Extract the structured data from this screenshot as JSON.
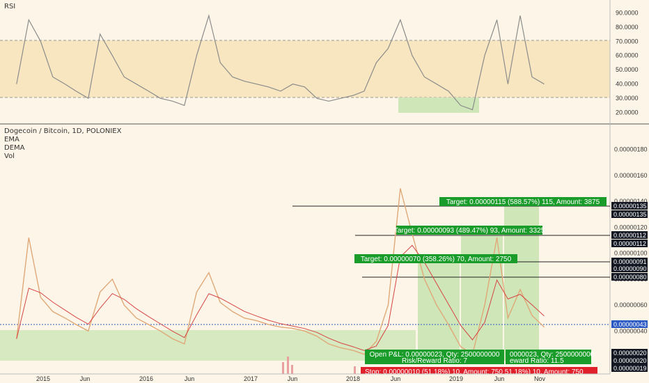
{
  "colors": {
    "background": "#fdf6e8",
    "rsi_band": "#f7e6bf",
    "rsi_line": "#8c8c8c",
    "price_candles": "#e0a878",
    "ema": "#d64545",
    "dema": "#3a7bd5",
    "green_zone": "#cfe6b8",
    "target_label": "#1a9c2a",
    "stop_label": "#e0202a",
    "current_price_label": "#2b59c3",
    "level_label": "#131722"
  },
  "rsi_panel": {
    "title": "RSI",
    "ticks": [
      "90.0000",
      "80.0000",
      "70.0000",
      "60.0000",
      "50.0000",
      "40.0000",
      "30.0000",
      "20.0000"
    ],
    "overbought": 70,
    "oversold": 30
  },
  "price_panel": {
    "title": "Dogecoin / Bitcoin, 1D, POLONIEX",
    "indicators": [
      "EMA",
      "DEMA",
      "Vol"
    ],
    "ticks": [
      "0.00000180",
      "0.00000160",
      "0.00000140",
      "0.00000120",
      "0.00000100",
      "0.00000080",
      "0.00000060",
      "0.00000040",
      "0.00000020"
    ],
    "price_labels": [
      {
        "text": "0.00000135",
        "kind": "level"
      },
      {
        "text": "0.00000135",
        "kind": "level"
      },
      {
        "text": "0.00000112",
        "kind": "level"
      },
      {
        "text": "0.00000112",
        "kind": "level"
      },
      {
        "text": "0.00000091",
        "kind": "level"
      },
      {
        "text": "0.00000090",
        "kind": "level"
      },
      {
        "text": "0.00000080",
        "kind": "level"
      },
      {
        "text": "0.00000043",
        "kind": "current"
      },
      {
        "text": "0.00000020",
        "kind": "level"
      },
      {
        "text": "0.00000020",
        "kind": "level"
      },
      {
        "text": "0.00000019",
        "kind": "level"
      }
    ]
  },
  "annotations": {
    "targets": [
      "Target: 0.00000115 (588.57%) 115, Amount: 3875",
      "Target: 0.00000093 (489.47%) 93, Amount: 3325",
      "Target: 0.00000070 (358.26%) 70, Amount: 2750"
    ],
    "pnl_box_1": [
      "Open P&L: 0.00000023, Qty: 2500000000",
      "Risk/Reward Ratio: 7"
    ],
    "pnl_box_2": [
      "0000023, Qty: 2500000000",
      "eward Ratio: 11.5"
    ],
    "stop": "Stop: 0.00000010 (51.18%) 10, Amount: 750  51.18%) 10, Amount: 750"
  },
  "time_axis": [
    "2015",
    "Jun",
    "2016",
    "Jun",
    "2017",
    "Jun",
    "2018",
    "Jun",
    "2019",
    "Jun",
    "Nov"
  ],
  "chart_data": {
    "type": "line",
    "panels": [
      "RSI",
      "Dogecoin / Bitcoin, 1D, POLONIEX"
    ],
    "price_ylim": [
      1.6e-07,
      1.9e-06
    ],
    "rsi_ylim": [
      13,
      96
    ],
    "price_series": {
      "name": "Dogecoin / Bitcoin",
      "x": [
        "2014-10-01",
        "2014-11-01",
        "2014-12-01",
        "2015-01-01",
        "2015-02-01",
        "2015-03-01",
        "2015-04-01",
        "2015-05-01",
        "2015-06-01",
        "2015-07-01",
        "2015-08-01",
        "2015-09-01",
        "2015-10-01",
        "2015-11-01",
        "2015-12-01",
        "2016-01-01",
        "2016-02-01",
        "2016-03-01",
        "2016-04-01",
        "2016-05-01",
        "2016-06-01",
        "2016-07-01",
        "2016-08-01",
        "2016-09-01",
        "2016-10-01",
        "2016-11-01",
        "2016-12-01",
        "2017-01-01",
        "2017-02-01",
        "2017-03-01",
        "2017-04-01",
        "2017-05-01",
        "2017-06-01",
        "2017-07-01",
        "2017-08-01",
        "2017-09-01",
        "2017-10-01",
        "2017-11-01",
        "2017-12-01",
        "2018-01-01",
        "2018-02-01",
        "2018-03-01",
        "2018-04-01",
        "2018-05-01",
        "2018-06-01"
      ],
      "y": [
        3.4e-07,
        1.12e-06,
        6.6e-07,
        5.5e-07,
        5e-07,
        4.5e-07,
        4e-07,
        7e-07,
        8e-07,
        6e-07,
        5e-07,
        4.5e-07,
        4e-07,
        3.4e-07,
        3e-07,
        7e-07,
        8.5e-07,
        6.2e-07,
        5.5e-07,
        5e-07,
        4.8e-07,
        4.5e-07,
        4.3e-07,
        4.2e-07,
        4e-07,
        3.6e-07,
        3e-07,
        2.7e-07,
        2.5e-07,
        2.2e-07,
        3.2e-07,
        6e-07,
        1.5e-06,
        1.15e-06,
        8e-07,
        6e-07,
        4.5e-07,
        2.8e-07,
        2.2e-07,
        6e-07,
        1.12e-06,
        5e-07,
        7.2e-07,
        5.2e-07,
        4.3e-07
      ]
    },
    "rsi_series": {
      "name": "RSI",
      "x": [
        "2014-10-01",
        "2014-11-01",
        "2014-12-01",
        "2015-01-01",
        "2015-02-01",
        "2015-03-01",
        "2015-04-01",
        "2015-05-01",
        "2015-06-01",
        "2015-07-01",
        "2015-08-01",
        "2015-09-01",
        "2015-10-01",
        "2015-11-01",
        "2015-12-01",
        "2016-01-01",
        "2016-02-01",
        "2016-03-01",
        "2016-04-01",
        "2016-05-01",
        "2016-06-01",
        "2016-07-01",
        "2016-08-01",
        "2016-09-01",
        "2016-10-01",
        "2016-11-01",
        "2016-12-01",
        "2017-01-01",
        "2017-02-01",
        "2017-03-01",
        "2017-04-01",
        "2017-05-01",
        "2017-06-01",
        "2017-07-01",
        "2017-08-01",
        "2017-09-01",
        "2017-10-01",
        "2017-11-01",
        "2017-12-01",
        "2018-01-01",
        "2018-02-01",
        "2018-03-01",
        "2018-04-01",
        "2018-05-01",
        "2018-06-01"
      ],
      "y": [
        40,
        85,
        70,
        45,
        40,
        35,
        30,
        75,
        60,
        45,
        40,
        35,
        30,
        28,
        25,
        60,
        88,
        55,
        45,
        42,
        40,
        38,
        35,
        40,
        38,
        30,
        28,
        30,
        32,
        35,
        55,
        65,
        85,
        60,
        45,
        40,
        35,
        25,
        22,
        60,
        85,
        40,
        88,
        45,
        40
      ]
    },
    "levels": [
      1.35e-06,
      1.12e-06,
      9.1e-07,
      8e-07,
      4.3e-07,
      2e-07
    ]
  }
}
